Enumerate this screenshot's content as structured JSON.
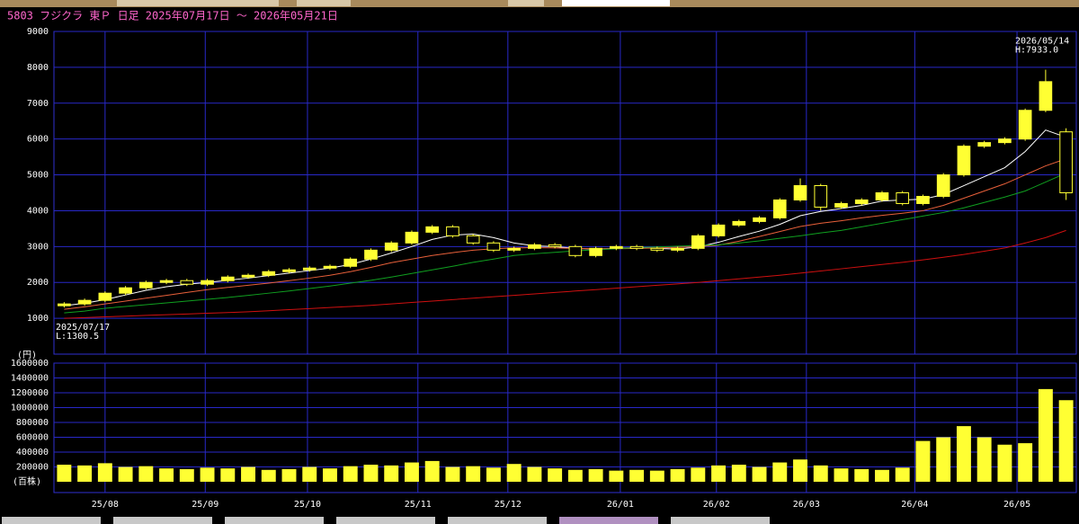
{
  "chart_data": {
    "type": "candlestick",
    "title": "5803 フジクラ 東Ｐ 日足 2025年07月17日 ～ 2026年05月21日",
    "unit": "(円)",
    "annotations": [
      "2026/05/14",
      "H:7933.0",
      "2025/07/17",
      "L:1300.5"
    ],
    "xlim": [
      0,
      50
    ],
    "xticks": [
      {
        "value": 2.5,
        "label": "25/08"
      },
      {
        "value": 7.4,
        "label": "25/09"
      },
      {
        "value": 12.4,
        "label": "25/10"
      },
      {
        "value": 17.8,
        "label": "25/11"
      },
      {
        "value": 22.2,
        "label": "25/12"
      },
      {
        "value": 27.7,
        "label": "26/01"
      },
      {
        "value": 32.4,
        "label": "26/02"
      },
      {
        "value": 36.8,
        "label": "26/03"
      },
      {
        "value": 42.1,
        "label": "26/04"
      },
      {
        "value": 47.1,
        "label": "26/05"
      }
    ],
    "ylim": [
      0,
      9000
    ],
    "yticks": [
      1000,
      2000,
      3000,
      4000,
      5000,
      6000,
      7000,
      8000,
      9000
    ],
    "grid": true,
    "color": "#ffff33",
    "open": [
      1350,
      1400,
      1500,
      1700,
      1850,
      2000,
      2050,
      1950,
      2050,
      2150,
      2200,
      2300,
      2350,
      2400,
      2450,
      2650,
      2900,
      3100,
      3400,
      3550,
      3300,
      3100,
      2900,
      2950,
      3050,
      3000,
      2750,
      2950,
      3000,
      2950,
      2900,
      2950,
      3300,
      3600,
      3700,
      3800,
      4300,
      4700,
      4100,
      4200,
      4300,
      4500,
      4200,
      4400,
      5000,
      5800,
      5900,
      6000,
      6800,
      6200
    ],
    "high": [
      1450,
      1550,
      1750,
      1900,
      2050,
      2100,
      2100,
      2100,
      2200,
      2250,
      2350,
      2400,
      2450,
      2500,
      2700,
      2950,
      3150,
      3450,
      3600,
      3600,
      3350,
      3150,
      3000,
      3100,
      3100,
      3050,
      3000,
      3050,
      3050,
      3000,
      3000,
      3350,
      3650,
      3750,
      3850,
      4350,
      4900,
      4750,
      4250,
      4350,
      4550,
      4550,
      4450,
      5050,
      5850,
      5950,
      6050,
      6850,
      7933,
      6300
    ],
    "low": [
      1300.5,
      1350,
      1450,
      1650,
      1800,
      1950,
      1900,
      1900,
      2000,
      2100,
      2150,
      2250,
      2300,
      2350,
      2400,
      2600,
      2850,
      3050,
      3350,
      3250,
      3050,
      2850,
      2850,
      2900,
      2950,
      2700,
      2700,
      2900,
      2900,
      2850,
      2850,
      2900,
      3250,
      3550,
      3650,
      3750,
      4250,
      4000,
      4050,
      4150,
      4250,
      4150,
      4150,
      4350,
      4950,
      5750,
      5850,
      5950,
      6750,
      4300
    ],
    "close": [
      1400,
      1500,
      1700,
      1850,
      2000,
      2050,
      1950,
      2050,
      2150,
      2200,
      2300,
      2350,
      2400,
      2450,
      2650,
      2900,
      3100,
      3400,
      3550,
      3300,
      3100,
      2900,
      2950,
      3050,
      3000,
      2750,
      2950,
      3000,
      2950,
      2900,
      2950,
      3300,
      3600,
      3700,
      3800,
      4300,
      4700,
      4100,
      4200,
      4300,
      4500,
      4200,
      4400,
      5000,
      5800,
      5900,
      6000,
      6800,
      7600,
      4500
    ],
    "series": [
      {
        "color": "#ffffff",
        "values": [
          1350,
          1420,
          1520,
          1650,
          1780,
          1880,
          1950,
          2000,
          2060,
          2120,
          2190,
          2260,
          2330,
          2400,
          2500,
          2650,
          2820,
          3000,
          3200,
          3320,
          3350,
          3250,
          3100,
          3020,
          3000,
          2950,
          2930,
          2950,
          2970,
          2950,
          2930,
          2990,
          3120,
          3280,
          3430,
          3620,
          3860,
          3980,
          4060,
          4150,
          4270,
          4300,
          4320,
          4450,
          4700,
          4950,
          5200,
          5650,
          6250,
          6050
        ]
      },
      {
        "color": "#e8603a",
        "values": [
          1250,
          1320,
          1400,
          1480,
          1560,
          1640,
          1720,
          1800,
          1860,
          1920,
          1980,
          2050,
          2120,
          2200,
          2300,
          2420,
          2550,
          2650,
          2750,
          2830,
          2900,
          2940,
          2960,
          2970,
          2960,
          2950,
          2940,
          2940,
          2950,
          2960,
          2980,
          3000,
          3040,
          3150,
          3280,
          3420,
          3560,
          3650,
          3720,
          3800,
          3870,
          3930,
          4000,
          4150,
          4350,
          4550,
          4750,
          5000,
          5250,
          5450
        ]
      },
      {
        "color": "#10a020",
        "values": [
          1150,
          1200,
          1280,
          1330,
          1380,
          1430,
          1480,
          1530,
          1580,
          1640,
          1700,
          1760,
          1830,
          1900,
          1980,
          2060,
          2150,
          2250,
          2350,
          2450,
          2560,
          2650,
          2750,
          2800,
          2840,
          2880,
          2910,
          2940,
          2970,
          2990,
          3010,
          3030,
          3050,
          3100,
          3160,
          3230,
          3300,
          3380,
          3450,
          3550,
          3650,
          3750,
          3850,
          3950,
          4080,
          4230,
          4380,
          4550,
          4800,
          5050
        ]
      },
      {
        "color": "#d01010",
        "values": [
          1000,
          1020,
          1040,
          1060,
          1080,
          1100,
          1120,
          1140,
          1160,
          1180,
          1210,
          1240,
          1270,
          1300,
          1330,
          1360,
          1400,
          1440,
          1480,
          1520,
          1560,
          1600,
          1640,
          1680,
          1720,
          1760,
          1800,
          1840,
          1880,
          1920,
          1960,
          2000,
          2050,
          2100,
          2150,
          2200,
          2260,
          2320,
          2380,
          2440,
          2500,
          2560,
          2630,
          2700,
          2780,
          2870,
          2960,
          3100,
          3250,
          3450
        ]
      }
    ],
    "volume": {
      "unit": "(百株)",
      "color": "#ffff33",
      "ylim": [
        0,
        1600000
      ],
      "yticks": [
        200000,
        400000,
        600000,
        800000,
        1000000,
        1200000,
        1400000,
        1600000
      ],
      "values": [
        230000,
        220000,
        250000,
        200000,
        210000,
        180000,
        170000,
        190000,
        180000,
        200000,
        160000,
        170000,
        200000,
        180000,
        210000,
        230000,
        220000,
        260000,
        280000,
        200000,
        210000,
        190000,
        240000,
        200000,
        180000,
        160000,
        170000,
        150000,
        160000,
        150000,
        170000,
        190000,
        220000,
        230000,
        200000,
        260000,
        300000,
        220000,
        180000,
        170000,
        160000,
        190000,
        550000,
        600000,
        750000,
        600000,
        500000,
        520000,
        1250000,
        1100000
      ]
    }
  }
}
